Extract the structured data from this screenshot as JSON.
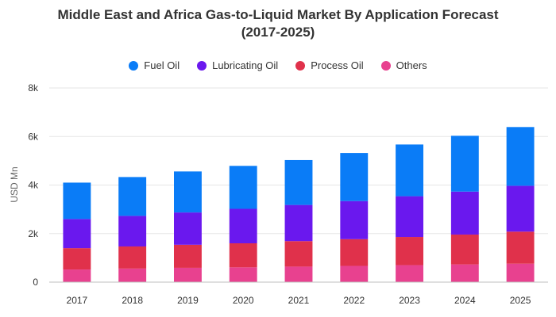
{
  "chart_data": {
    "type": "bar",
    "stacked": true,
    "title_line1": "Middle East and Africa Gas-to-Liquid Market By Application Forecast",
    "title_line2": "(2017-2025)",
    "xlabel": "",
    "ylabel": "USD Mn",
    "ylim": [
      0,
      8000
    ],
    "yticks": [
      0,
      2000,
      4000,
      6000,
      8000
    ],
    "ytick_labels": [
      "0",
      "2k",
      "4k",
      "6k",
      "8k"
    ],
    "categories": [
      "2017",
      "2018",
      "2019",
      "2020",
      "2021",
      "2022",
      "2023",
      "2024",
      "2025"
    ],
    "series": [
      {
        "name": "Others",
        "color": "#e8418f",
        "values": [
          520,
          560,
          590,
          610,
          640,
          670,
          700,
          730,
          760
        ]
      },
      {
        "name": "Process Oil",
        "color": "#e0314b",
        "values": [
          880,
          910,
          950,
          990,
          1050,
          1100,
          1160,
          1230,
          1320
        ]
      },
      {
        "name": "Lubricating Oil",
        "color": "#6a18ee",
        "values": [
          1200,
          1260,
          1330,
          1420,
          1490,
          1570,
          1680,
          1770,
          1890
        ]
      },
      {
        "name": "Fuel Oil",
        "color": "#0a7cf7",
        "values": [
          1500,
          1600,
          1690,
          1770,
          1850,
          1980,
          2130,
          2300,
          2420
        ]
      }
    ],
    "legend_order": [
      "Fuel Oil",
      "Lubricating Oil",
      "Process Oil",
      "Others"
    ],
    "legend_position": "top-center",
    "grid": true
  }
}
